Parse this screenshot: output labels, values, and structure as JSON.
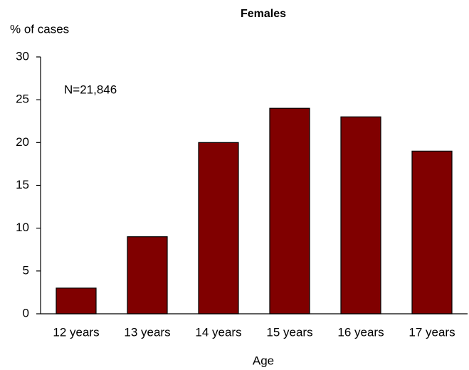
{
  "chart_data": {
    "type": "bar",
    "title": "Females",
    "y_label": "% of cases",
    "x_label": "Age",
    "annotation": "N=21,846",
    "categories": [
      "12 years",
      "13 years",
      "14 years",
      "15 years",
      "16 years",
      "17 years"
    ],
    "values": [
      3,
      9,
      20,
      24,
      23,
      19
    ],
    "color": "#800000",
    "ylim": [
      0,
      30
    ],
    "yticks": [
      0,
      5,
      10,
      15,
      20,
      25,
      30
    ],
    "grid": false
  }
}
